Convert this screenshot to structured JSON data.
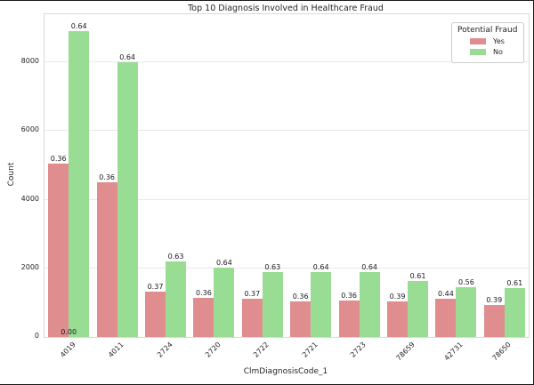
{
  "figure": {
    "border_color": "#1a1a1a",
    "background": "#ffffff"
  },
  "chart_data": {
    "type": "bar",
    "title": "Top 10 Diagnosis Involved in Healthcare Fraud",
    "xlabel": "ClmDiagnosisCode_1",
    "ylabel": "Count",
    "categories": [
      "4019",
      "4011",
      "2724",
      "2720",
      "2722",
      "2721",
      "2723",
      "78659",
      "42731",
      "78650"
    ],
    "series": [
      {
        "name": "Yes",
        "color": "#df8d8f",
        "values": [
          5050,
          4500,
          1330,
          1130,
          1110,
          1040,
          1060,
          1030,
          1120,
          920
        ],
        "labels": [
          "0.36",
          "0.36",
          "0.37",
          "0.36",
          "0.37",
          "0.36",
          "0.36",
          "0.39",
          "0.44",
          "0.39"
        ]
      },
      {
        "name": "No",
        "color": "#99dd94",
        "values": [
          8900,
          8000,
          2200,
          2030,
          1890,
          1880,
          1900,
          1620,
          1440,
          1430
        ],
        "labels": [
          "0.64",
          "0.64",
          "0.63",
          "0.64",
          "0.63",
          "0.64",
          "0.64",
          "0.61",
          "0.56",
          "0.61"
        ]
      }
    ],
    "extra_annotations": [
      {
        "category": "4019",
        "text": "0.00",
        "position": "baseline"
      }
    ],
    "y_ticks": [
      0,
      2000,
      4000,
      6000,
      8000
    ],
    "y_tick_labels": [
      "0",
      "2000",
      "4000",
      "6000",
      "8000"
    ],
    "ylim": [
      0,
      9400
    ],
    "grid": "horizontal",
    "gridline_color": "#e8e8e8",
    "legend": {
      "title": "Potential Fraud",
      "position": "upper right",
      "entries": [
        {
          "label": "Yes",
          "color": "#df8d8f"
        },
        {
          "label": "No",
          "color": "#99dd94"
        }
      ]
    }
  }
}
